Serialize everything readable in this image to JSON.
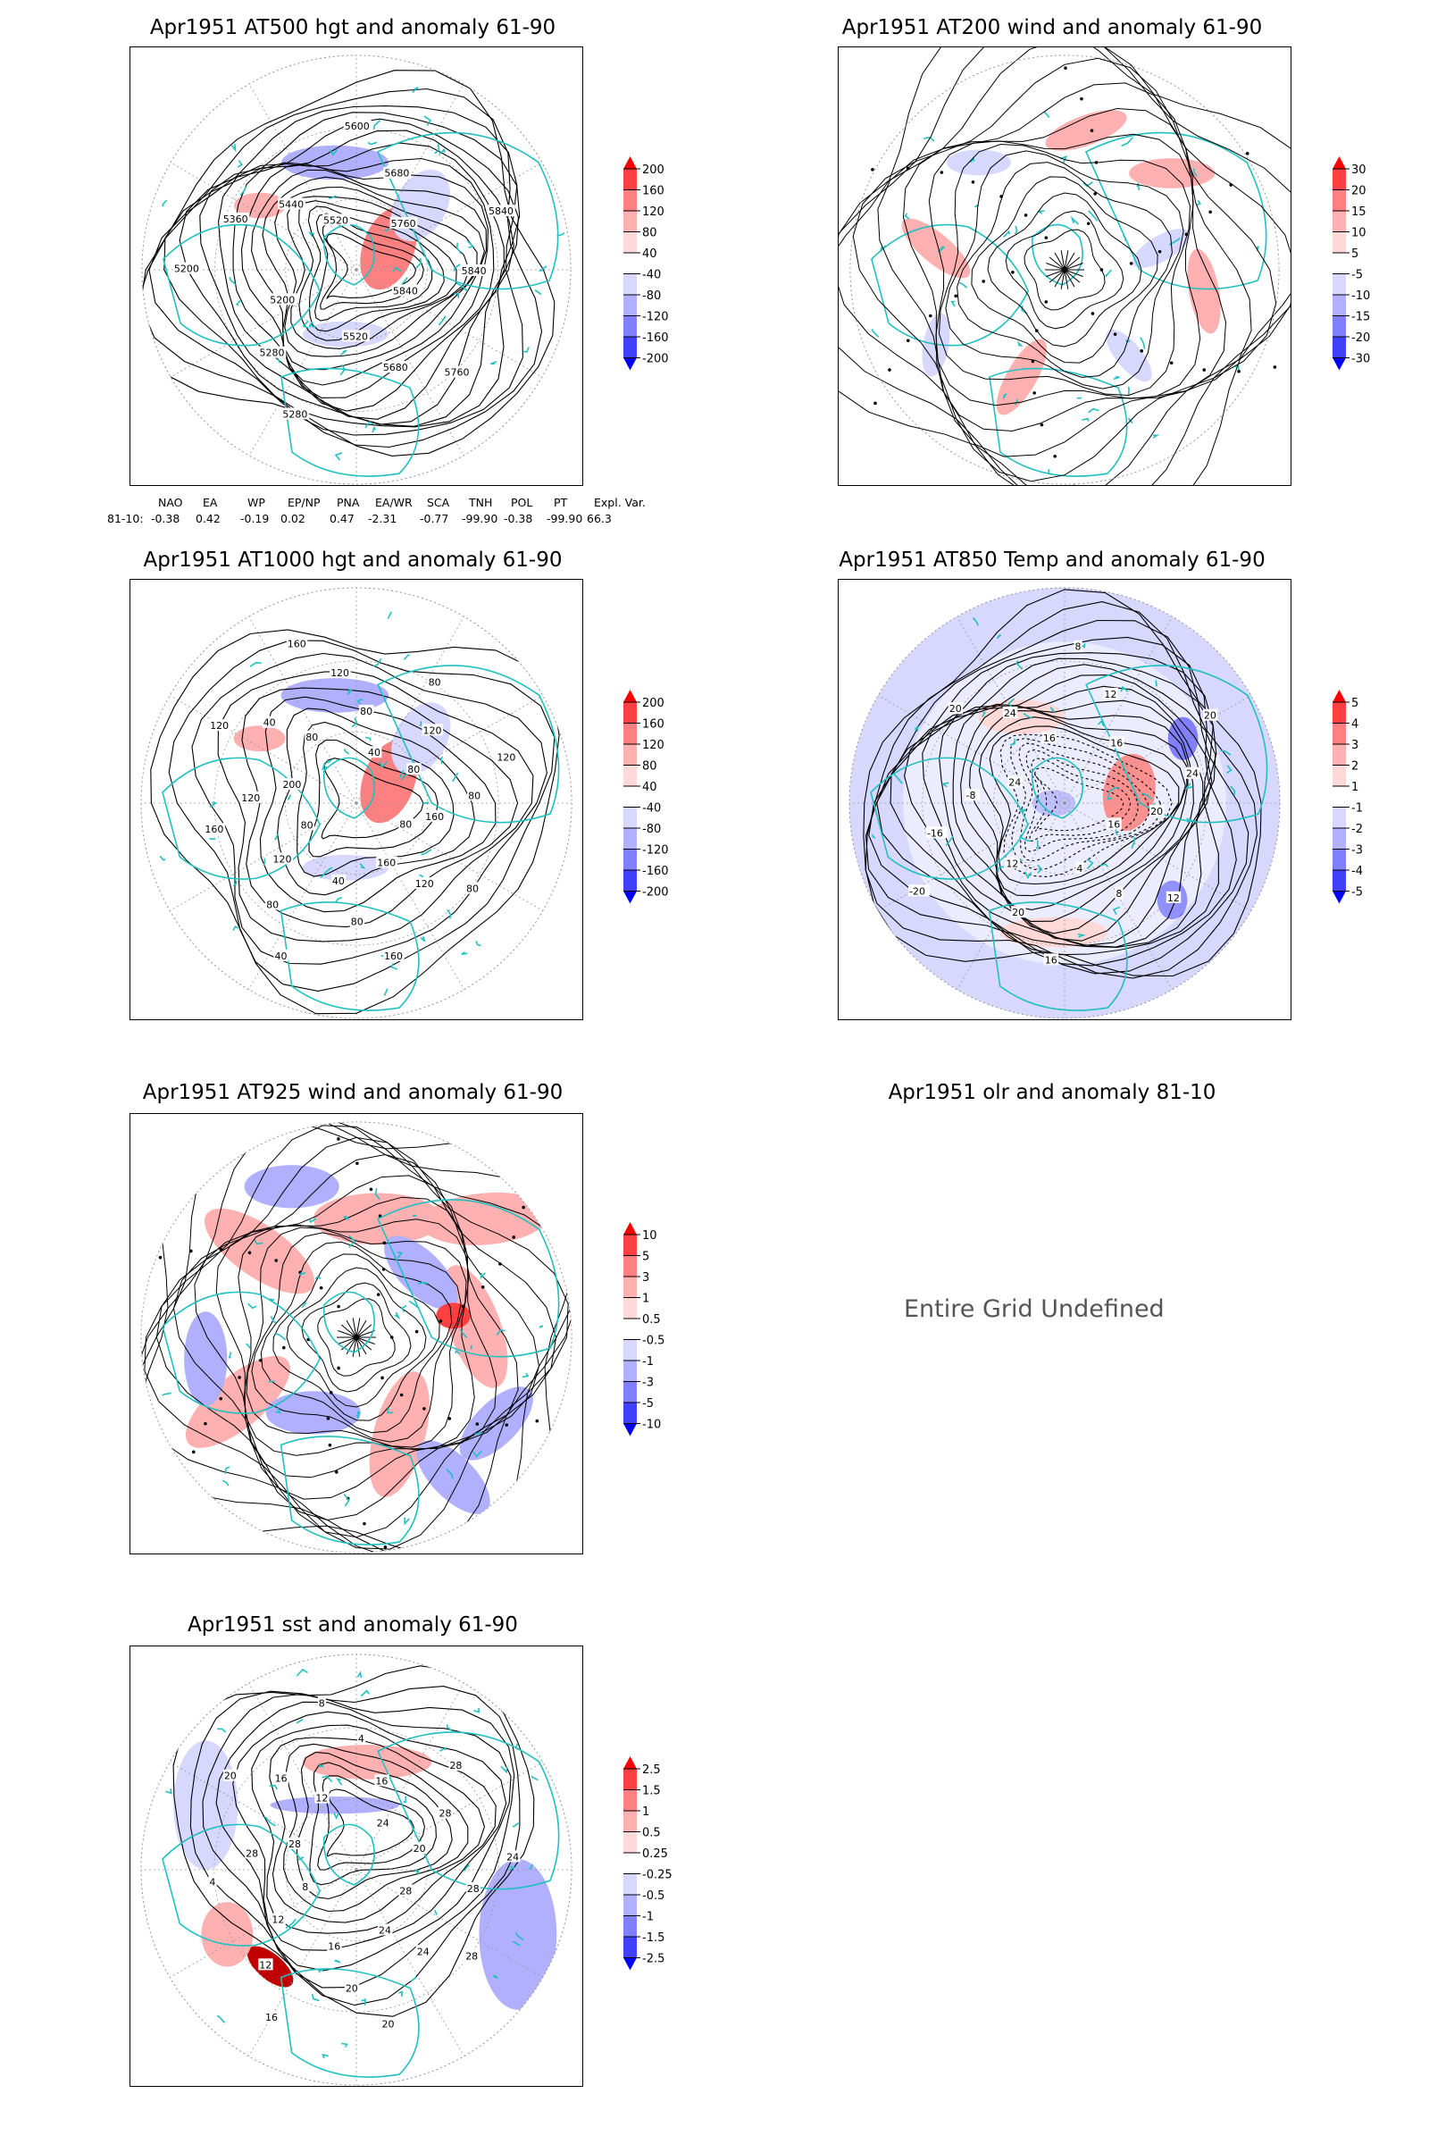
{
  "panels": [
    {
      "id": "p1",
      "title": "Apr1951 AT500 hgt and anomaly 61-90",
      "type": "hgt",
      "scale": "hgt",
      "undefined": false,
      "contour_labels": [
        "5840",
        "5760",
        "5680",
        "5520",
        "5280",
        "5280",
        "5200",
        "5200",
        "5360",
        "5440",
        "5520",
        "5600",
        "5680",
        "5760",
        "5840",
        "5840"
      ]
    },
    {
      "id": "p2",
      "title": "Apr1951 AT200 wind and anomaly 61-90",
      "type": "wind",
      "scale": "w200",
      "undefined": false,
      "contour_labels": []
    },
    {
      "id": "p3",
      "title": "Apr1951 AT1000 hgt and anomaly 61-90",
      "type": "hgt",
      "scale": "hgt",
      "undefined": false,
      "contour_labels": [
        "80",
        "80",
        "120",
        "160",
        "160",
        "80",
        "40",
        "40",
        "80",
        "120",
        "80",
        "160",
        "120",
        "200",
        "120",
        "40",
        "80",
        "160",
        "120",
        "80",
        "40",
        "80",
        "120",
        "80",
        "120",
        "80",
        "160"
      ]
    },
    {
      "id": "p4",
      "title": "Apr1951 AT850 Temp and anomaly 61-90",
      "type": "temp",
      "scale": "temp",
      "undefined": false,
      "contour_labels": [
        "16",
        "12",
        "8",
        "4",
        "16",
        "20",
        "12",
        "-20",
        "-16",
        "-8",
        "24",
        "20",
        "24",
        "16",
        "8",
        "12",
        "16",
        "20",
        "24",
        "20"
      ]
    },
    {
      "id": "p5",
      "title": "Apr1951 AT925 wind and anomaly 61-90",
      "type": "wind925",
      "scale": "w925",
      "undefined": false,
      "contour_labels": []
    },
    {
      "id": "p6",
      "title": "Apr1951 olr and anomaly 81-10",
      "type": "none",
      "scale": "none",
      "undefined": true,
      "message": "Entire Grid Undefined"
    },
    {
      "id": "p7",
      "title": "Apr1951 sst and anomaly 61-90",
      "type": "sst",
      "scale": "sst",
      "undefined": false,
      "contour_labels": [
        "28",
        "28",
        "24",
        "24",
        "20",
        "20",
        "16",
        "16",
        "12",
        "12",
        "8",
        "4",
        "28",
        "28",
        "20",
        "16",
        "12",
        "8",
        "4",
        "16",
        "24",
        "28",
        "28",
        "20",
        "24",
        "28"
      ]
    }
  ],
  "colorbars": {
    "hgt": {
      "labels": [
        "200",
        "160",
        "120",
        "80",
        "40",
        "-40",
        "-80",
        "-120",
        "-160",
        "-200"
      ]
    },
    "w200": {
      "labels": [
        "30",
        "20",
        "15",
        "10",
        "5",
        "-5",
        "-10",
        "-15",
        "-20",
        "-30"
      ]
    },
    "temp": {
      "labels": [
        "5",
        "4",
        "3",
        "2",
        "1",
        "-1",
        "-2",
        "-3",
        "-4",
        "-5"
      ]
    },
    "w925": {
      "labels": [
        "10",
        "5",
        "3",
        "1",
        "0.5",
        "-0.5",
        "-1",
        "-3",
        "-5",
        "-10"
      ]
    },
    "sst": {
      "labels": [
        "2.5",
        "1.5",
        "1",
        "0.5",
        "0.25",
        "-0.25",
        "-0.5",
        "-1",
        "-1.5",
        "-2.5"
      ]
    }
  },
  "colors": {
    "red_shades": [
      "#ff0000",
      "#ff4040",
      "#ff8080",
      "#ffb0b0",
      "#ffd8d8"
    ],
    "blue_shades": [
      "#d8d8ff",
      "#b0b0ff",
      "#8080ff",
      "#4040ff",
      "#0000ff"
    ],
    "coast": "#20c0c0"
  },
  "indices": {
    "header": [
      "NAO",
      "EA",
      "WP",
      "EP/NP",
      "PNA",
      "EA/WR",
      "SCA",
      "TNH",
      "POL",
      "PT",
      "Expl. Var."
    ],
    "row_label": "81-10:",
    "values": [
      "-0.38",
      "0.42",
      "-0.19",
      "0.02",
      "0.47",
      "-2.31",
      "-0.77",
      "-99.90",
      "-0.38",
      "-99.90",
      "66.3"
    ]
  }
}
